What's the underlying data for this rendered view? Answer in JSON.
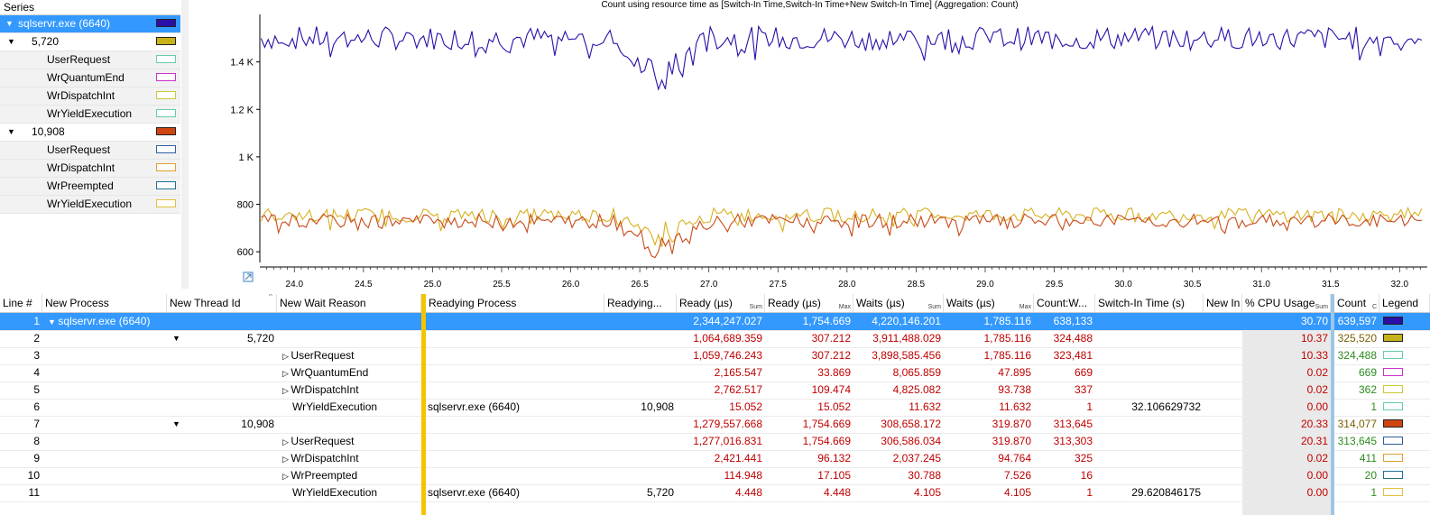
{
  "series_panel": {
    "header": "Series",
    "rows": [
      {
        "label": "sqlservr.exe (6640)",
        "color": "#2a0ea8",
        "filled": true,
        "level": 0,
        "expanded": true,
        "selected": true
      },
      {
        "label": "5,720",
        "color": "#c8b21a",
        "filled": true,
        "level": 1,
        "expanded": true
      },
      {
        "label": "UserRequest",
        "color": "#66ccaa",
        "filled": false,
        "level": 2
      },
      {
        "label": "WrQuantumEnd",
        "color": "#cc33cc",
        "filled": false,
        "level": 2
      },
      {
        "label": "WrDispatchInt",
        "color": "#c8c83a",
        "filled": false,
        "level": 2
      },
      {
        "label": "WrYieldExecution",
        "color": "#66ccaa",
        "filled": false,
        "level": 2
      },
      {
        "label": "10,908",
        "color": "#d04410",
        "filled": true,
        "level": 1,
        "expanded": true
      },
      {
        "label": "UserRequest",
        "color": "#2f5fa0",
        "filled": false,
        "level": 2
      },
      {
        "label": "WrDispatchInt",
        "color": "#e0a030",
        "filled": false,
        "level": 2
      },
      {
        "label": "WrPreempted",
        "color": "#207090",
        "filled": false,
        "level": 2
      },
      {
        "label": "WrYieldExecution",
        "color": "#e0c040",
        "filled": false,
        "level": 2
      }
    ]
  },
  "chart_data": {
    "type": "line",
    "title": "Count using resource time as [Switch-In Time,Switch-In Time+New Switch-In Time] (Aggregation: Count)",
    "xlim": [
      23.75,
      32.2
    ],
    "ylim": [
      555,
      1600
    ],
    "x_ticks": [
      "24.0",
      "24.5",
      "25.0",
      "25.5",
      "26.0",
      "26.5",
      "27.0",
      "27.5",
      "28.0",
      "28.5",
      "29.0",
      "29.5",
      "30.0",
      "30.5",
      "31.0",
      "31.5",
      "32.0"
    ],
    "y_ticks": [
      {
        "value": 600,
        "label": "600"
      },
      {
        "value": 800,
        "label": "800"
      },
      {
        "value": 1000,
        "label": "1 K"
      },
      {
        "value": 1200,
        "label": "1.2 K"
      },
      {
        "value": 1400,
        "label": "1.4 K"
      }
    ],
    "series": [
      {
        "color": "#2a0ea8",
        "baseline": 1500,
        "noise": 50,
        "dip_x": 26.65,
        "dip_depth": 230
      },
      {
        "color": "#d8b020",
        "baseline": 755,
        "noise": 30,
        "dip_x": 26.65,
        "dip_depth": 120
      },
      {
        "color": "#c84a1a",
        "baseline": 730,
        "noise": 30,
        "dip_x": 26.65,
        "dip_depth": 150
      }
    ]
  },
  "table": {
    "headers": [
      {
        "label": "Line #",
        "sub": ""
      },
      {
        "label": "New Process",
        "sub": ""
      },
      {
        "label": "New Thread Id",
        "sub": ""
      },
      {
        "label": "New Wait Reason",
        "sub": ""
      },
      {
        "label": "Readying Process",
        "sub": ""
      },
      {
        "label": "Readying...",
        "sub": ""
      },
      {
        "label": "Ready (µs)",
        "sub": "Sum"
      },
      {
        "label": "Ready (µs)",
        "sub": "Max"
      },
      {
        "label": "Waits (µs)",
        "sub": "Sum"
      },
      {
        "label": "Waits (µs)",
        "sub": "Max"
      },
      {
        "label": "Count:W...",
        "sub": ""
      },
      {
        "label": "Switch-In Time (s)",
        "sub": ""
      },
      {
        "label": "New In",
        "sub": ""
      },
      {
        "label": "% CPU Usage",
        "sub": "Sum"
      },
      {
        "label": "Count",
        "sub": "C"
      },
      {
        "label": "Legend",
        "sub": ""
      }
    ],
    "rows": [
      {
        "line": "1",
        "process": "sqlservr.exe (6640)",
        "thread": "",
        "reason": "",
        "readying_process": "",
        "readying": "",
        "ready_sum": "2,344,247.027",
        "ready_max": "1,754.669",
        "waits_sum": "4,220,146.201",
        "waits_max": "1,785.116",
        "count_w": "638,133",
        "switch_in": "",
        "cpu": "30.70",
        "count": "639,597",
        "legend_color": "#2a0ea8",
        "legend_filled": true,
        "count_color": "gold",
        "expander": "down",
        "selected": true
      },
      {
        "line": "2",
        "process": "",
        "thread": "5,720",
        "reason": "",
        "readying_process": "",
        "readying": "",
        "ready_sum": "1,064,689.359",
        "ready_max": "307.212",
        "waits_sum": "3,911,488.029",
        "waits_max": "1,785.116",
        "count_w": "324,488",
        "switch_in": "",
        "cpu": "10.37",
        "count": "325,520",
        "legend_color": "#c8b21a",
        "legend_filled": true,
        "count_color": "gold",
        "expander": "down"
      },
      {
        "line": "3",
        "process": "",
        "thread": "",
        "reason": "UserRequest",
        "readying_process": "",
        "readying": "",
        "ready_sum": "1,059,746.243",
        "ready_max": "307.212",
        "waits_sum": "3,898,585.456",
        "waits_max": "1,785.116",
        "count_w": "323,481",
        "switch_in": "",
        "cpu": "10.33",
        "count": "324,488",
        "legend_color": "#66ccaa",
        "legend_filled": false,
        "count_color": "grn",
        "expander": "right"
      },
      {
        "line": "4",
        "process": "",
        "thread": "",
        "reason": "WrQuantumEnd",
        "readying_process": "",
        "readying": "",
        "ready_sum": "2,165.547",
        "ready_max": "33.869",
        "waits_sum": "8,065.859",
        "waits_max": "47.895",
        "count_w": "669",
        "switch_in": "",
        "cpu": "0.02",
        "count": "669",
        "legend_color": "#cc33cc",
        "legend_filled": false,
        "count_color": "grn",
        "expander": "right"
      },
      {
        "line": "5",
        "process": "",
        "thread": "",
        "reason": "WrDispatchInt",
        "readying_process": "",
        "readying": "",
        "ready_sum": "2,762.517",
        "ready_max": "109.474",
        "waits_sum": "4,825.082",
        "waits_max": "93.738",
        "count_w": "337",
        "switch_in": "",
        "cpu": "0.02",
        "count": "362",
        "legend_color": "#c8c83a",
        "legend_filled": false,
        "count_color": "grn",
        "expander": "right"
      },
      {
        "line": "6",
        "process": "",
        "thread": "",
        "reason": "WrYieldExecution",
        "readying_process": "sqlservr.exe (6640)",
        "readying": "10,908",
        "ready_sum": "15.052",
        "ready_max": "15.052",
        "waits_sum": "11.632",
        "waits_max": "11.632",
        "count_w": "1",
        "switch_in": "32.106629732",
        "cpu": "0.00",
        "count": "1",
        "legend_color": "#66ccaa",
        "legend_filled": false,
        "count_color": "grn",
        "expander": ""
      },
      {
        "line": "7",
        "process": "",
        "thread": "10,908",
        "reason": "",
        "readying_process": "",
        "readying": "",
        "ready_sum": "1,279,557.668",
        "ready_max": "1,754.669",
        "waits_sum": "308,658.172",
        "waits_max": "319.870",
        "count_w": "313,645",
        "switch_in": "",
        "cpu": "20.33",
        "count": "314,077",
        "legend_color": "#d04410",
        "legend_filled": true,
        "count_color": "gold",
        "expander": "down"
      },
      {
        "line": "8",
        "process": "",
        "thread": "",
        "reason": "UserRequest",
        "readying_process": "",
        "readying": "",
        "ready_sum": "1,277,016.831",
        "ready_max": "1,754.669",
        "waits_sum": "306,586.034",
        "waits_max": "319.870",
        "count_w": "313,303",
        "switch_in": "",
        "cpu": "20.31",
        "count": "313,645",
        "legend_color": "#2f5fa0",
        "legend_filled": false,
        "count_color": "grn",
        "expander": "right"
      },
      {
        "line": "9",
        "process": "",
        "thread": "",
        "reason": "WrDispatchInt",
        "readying_process": "",
        "readying": "",
        "ready_sum": "2,421.441",
        "ready_max": "96.132",
        "waits_sum": "2,037.245",
        "waits_max": "94.764",
        "count_w": "325",
        "switch_in": "",
        "cpu": "0.02",
        "count": "411",
        "legend_color": "#e0a030",
        "legend_filled": false,
        "count_color": "grn",
        "expander": "right"
      },
      {
        "line": "10",
        "process": "",
        "thread": "",
        "reason": "WrPreempted",
        "readying_process": "",
        "readying": "",
        "ready_sum": "114.948",
        "ready_max": "17.105",
        "waits_sum": "30.788",
        "waits_max": "7.526",
        "count_w": "16",
        "switch_in": "",
        "cpu": "0.00",
        "count": "20",
        "legend_color": "#207090",
        "legend_filled": false,
        "count_color": "grn",
        "expander": "right"
      },
      {
        "line": "11",
        "process": "",
        "thread": "",
        "reason": "WrYieldExecution",
        "readying_process": "sqlservr.exe (6640)",
        "readying": "5,720",
        "ready_sum": "4.448",
        "ready_max": "4.448",
        "waits_sum": "4.105",
        "waits_max": "4.105",
        "count_w": "1",
        "switch_in": "29.620846175",
        "cpu": "0.00",
        "count": "1",
        "legend_color": "#e0c040",
        "legend_filled": false,
        "count_color": "grn",
        "expander": ""
      }
    ]
  }
}
